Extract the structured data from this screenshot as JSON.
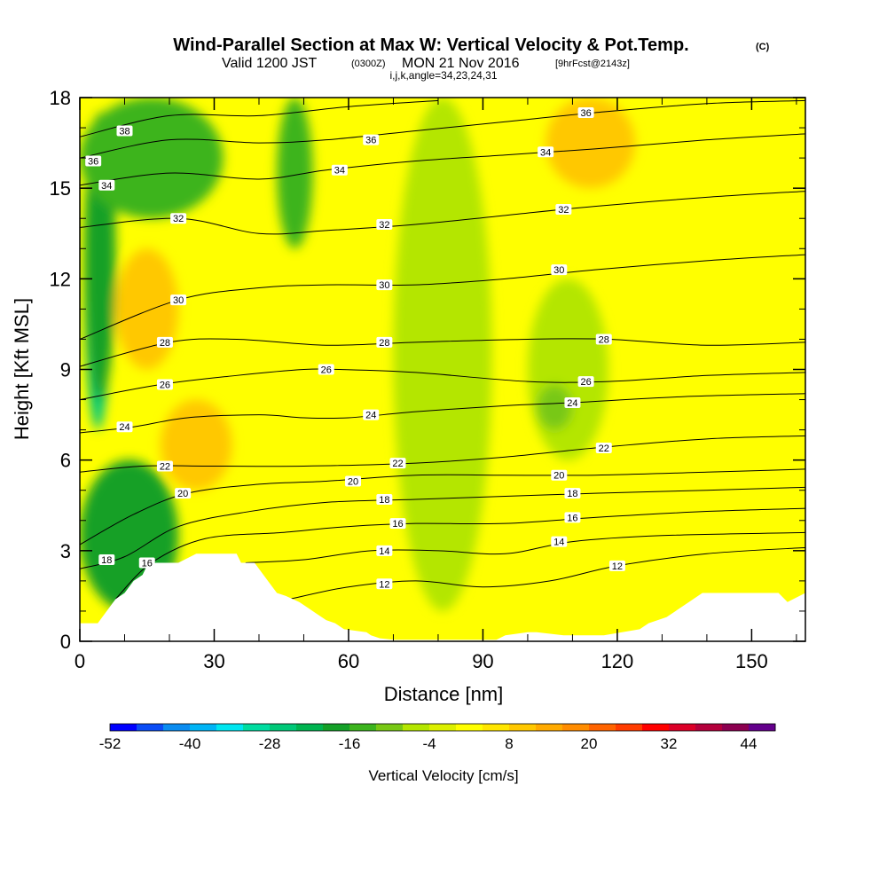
{
  "chart_data": {
    "type": "contour",
    "title": "Wind-Parallel Section at Max W: Vertical Velocity & Pot.Temp.",
    "title_unit": "(C)",
    "subtitle": {
      "valid": "Valid 1200 JST",
      "utc": "(0300Z)",
      "date": "MON 21 Nov 2016",
      "forecast": "[9hrFcst@2143z]"
    },
    "indices": "i,j,k,angle=34,23,24,31",
    "xlabel": "Distance [nm]",
    "ylabel": "Height [Kft MSL]",
    "xlim": [
      0,
      162
    ],
    "ylim": [
      0,
      18
    ],
    "xticks": [
      "0",
      "30",
      "60",
      "90",
      "120",
      "150"
    ],
    "yticks": [
      "0",
      "3",
      "6",
      "9",
      "12",
      "15",
      "18"
    ],
    "colorbar": {
      "label": "Vertical Velocity [cm/s]",
      "tick_labels": [
        "-52",
        "-40",
        "-28",
        "-16",
        "-4",
        "8",
        "20",
        "32",
        "44"
      ],
      "colors": [
        "#0000ff",
        "#0a4cf5",
        "#0a8cf0",
        "#00b4f5",
        "#00e6f0",
        "#00dca0",
        "#00c878",
        "#00b450",
        "#14a028",
        "#3cb41e",
        "#78c814",
        "#b4e600",
        "#dcf000",
        "#ffff00",
        "#ffe600",
        "#ffc800",
        "#ffaa00",
        "#ff8c00",
        "#ff6400",
        "#ff3c00",
        "#ff0000",
        "#dc0028",
        "#b4003c",
        "#8c0050",
        "#64008c"
      ]
    },
    "background_field": {
      "base_color": "#ffff00",
      "regions": [
        {
          "desc": "strong downdraft column",
          "x": [
            1,
            7
          ],
          "y": [
            7,
            17
          ],
          "color": "#00c878"
        },
        {
          "desc": "downdraft column",
          "x": [
            1,
            8
          ],
          "y": [
            8,
            17.5
          ],
          "color": "#14a028"
        },
        {
          "desc": "upper-left sinking",
          "x": [
            0,
            32
          ],
          "y": [
            14,
            18
          ],
          "color": "#3cb41e"
        },
        {
          "desc": "low-level sinking",
          "x": [
            0,
            22
          ],
          "y": [
            1,
            6
          ],
          "color": "#14a028"
        },
        {
          "desc": "upper narrow column",
          "x": [
            44,
            52
          ],
          "y": [
            13,
            18
          ],
          "color": "#3cb41e"
        },
        {
          "desc": "slight sinking band",
          "x": [
            70,
            92
          ],
          "y": [
            1,
            18
          ],
          "color": "#b4e600"
        },
        {
          "desc": "slight sinking band",
          "x": [
            100,
            118
          ],
          "y": [
            6,
            12
          ],
          "color": "#b4e600"
        },
        {
          "desc": "weak downdraft patch",
          "x": [
            102,
            110
          ],
          "y": [
            7,
            8.5
          ],
          "color": "#78c814"
        },
        {
          "desc": "updraft patch",
          "x": [
            8,
            22
          ],
          "y": [
            9,
            13
          ],
          "color": "#ffc800"
        },
        {
          "desc": "updraft patch",
          "x": [
            18,
            34
          ],
          "y": [
            5,
            8
          ],
          "color": "#ffc800"
        },
        {
          "desc": "updraft patch",
          "x": [
            104,
            124
          ],
          "y": [
            15,
            18
          ],
          "color": "#ffc800"
        }
      ]
    },
    "contour_lines": [
      {
        "label": "12",
        "points": [
          [
            47,
            1.4
          ],
          [
            60,
            1.8
          ],
          [
            75,
            2.0
          ],
          [
            90,
            1.8
          ],
          [
            105,
            2.0
          ],
          [
            120,
            2.5
          ],
          [
            140,
            2.9
          ],
          [
            162,
            3.1
          ]
        ],
        "label_at": [
          [
            68,
            1.9
          ],
          [
            120,
            2.5
          ]
        ]
      },
      {
        "label": "14",
        "points": [
          [
            37,
            2.6
          ],
          [
            50,
            2.7
          ],
          [
            65,
            3.0
          ],
          [
            80,
            3.0
          ],
          [
            95,
            2.9
          ],
          [
            110,
            3.3
          ],
          [
            130,
            3.5
          ],
          [
            162,
            3.6
          ]
        ],
        "label_at": [
          [
            68,
            3.0
          ],
          [
            107,
            3.3
          ]
        ]
      },
      {
        "label": "16",
        "points": [
          [
            8,
            1.4
          ],
          [
            16,
            2.6
          ],
          [
            28,
            3.4
          ],
          [
            45,
            3.6
          ],
          [
            60,
            3.8
          ],
          [
            75,
            3.9
          ],
          [
            95,
            3.9
          ],
          [
            115,
            4.1
          ],
          [
            140,
            4.3
          ],
          [
            162,
            4.4
          ]
        ],
        "label_at": [
          [
            15,
            2.6
          ],
          [
            71,
            3.9
          ],
          [
            110,
            4.1
          ]
        ]
      },
      {
        "label": "18",
        "points": [
          [
            0,
            2.4
          ],
          [
            10,
            2.8
          ],
          [
            22,
            3.8
          ],
          [
            38,
            4.3
          ],
          [
            55,
            4.6
          ],
          [
            75,
            4.7
          ],
          [
            95,
            4.8
          ],
          [
            115,
            4.9
          ],
          [
            140,
            5.0
          ],
          [
            162,
            5.1
          ]
        ],
        "label_at": [
          [
            6,
            2.7
          ],
          [
            68,
            4.7
          ],
          [
            110,
            4.9
          ]
        ]
      },
      {
        "label": "20",
        "points": [
          [
            0,
            3.2
          ],
          [
            12,
            4.2
          ],
          [
            24,
            4.9
          ],
          [
            40,
            5.2
          ],
          [
            55,
            5.3
          ],
          [
            75,
            5.5
          ],
          [
            95,
            5.5
          ],
          [
            115,
            5.5
          ],
          [
            140,
            5.6
          ],
          [
            162,
            5.7
          ]
        ],
        "label_at": [
          [
            23,
            4.9
          ],
          [
            61,
            5.3
          ],
          [
            107,
            5.5
          ]
        ]
      },
      {
        "label": "22",
        "points": [
          [
            0,
            5.6
          ],
          [
            14,
            5.8
          ],
          [
            30,
            5.8
          ],
          [
            50,
            5.8
          ],
          [
            75,
            5.9
          ],
          [
            95,
            6.1
          ],
          [
            115,
            6.4
          ],
          [
            140,
            6.7
          ],
          [
            162,
            6.8
          ]
        ],
        "label_at": [
          [
            19,
            5.8
          ],
          [
            71,
            5.9
          ],
          [
            117,
            6.4
          ]
        ]
      },
      {
        "label": "24",
        "points": [
          [
            0,
            6.9
          ],
          [
            12,
            7.1
          ],
          [
            24,
            7.4
          ],
          [
            40,
            7.5
          ],
          [
            50,
            7.4
          ],
          [
            60,
            7.4
          ],
          [
            75,
            7.6
          ],
          [
            95,
            7.8
          ],
          [
            110,
            7.9
          ],
          [
            135,
            8.1
          ],
          [
            162,
            8.2
          ]
        ],
        "label_at": [
          [
            10,
            7.1
          ],
          [
            65,
            7.5
          ],
          [
            110,
            7.9
          ]
        ]
      },
      {
        "label": "26",
        "points": [
          [
            0,
            8.0
          ],
          [
            18,
            8.5
          ],
          [
            35,
            8.8
          ],
          [
            50,
            9.0
          ],
          [
            58,
            9.0
          ],
          [
            75,
            8.9
          ],
          [
            100,
            8.6
          ],
          [
            118,
            8.6
          ],
          [
            140,
            8.8
          ],
          [
            162,
            8.9
          ]
        ],
        "label_at": [
          [
            19,
            8.5
          ],
          [
            55,
            9.0
          ],
          [
            113,
            8.6
          ]
        ]
      },
      {
        "label": "28",
        "points": [
          [
            0,
            9.1
          ],
          [
            20,
            9.9
          ],
          [
            35,
            10.0
          ],
          [
            55,
            9.8
          ],
          [
            75,
            9.9
          ],
          [
            100,
            10.0
          ],
          [
            118,
            10.0
          ],
          [
            140,
            9.8
          ],
          [
            162,
            9.9
          ]
        ],
        "label_at": [
          [
            19,
            9.9
          ],
          [
            68,
            9.9
          ],
          [
            117,
            10.0
          ]
        ]
      },
      {
        "label": "30",
        "points": [
          [
            0,
            10.0
          ],
          [
            22,
            11.3
          ],
          [
            40,
            11.7
          ],
          [
            55,
            11.8
          ],
          [
            75,
            11.8
          ],
          [
            95,
            12.0
          ],
          [
            115,
            12.3
          ],
          [
            140,
            12.6
          ],
          [
            162,
            12.8
          ]
        ],
        "label_at": [
          [
            22,
            11.3
          ],
          [
            68,
            11.8
          ],
          [
            107,
            12.3
          ]
        ]
      },
      {
        "label": "32",
        "points": [
          [
            0,
            13.7
          ],
          [
            22,
            14.0
          ],
          [
            40,
            13.5
          ],
          [
            55,
            13.6
          ],
          [
            75,
            13.8
          ],
          [
            95,
            14.1
          ],
          [
            115,
            14.4
          ],
          [
            140,
            14.7
          ],
          [
            162,
            14.9
          ]
        ],
        "label_at": [
          [
            22,
            14.0
          ],
          [
            68,
            13.8
          ],
          [
            108,
            14.3
          ]
        ]
      },
      {
        "label": "34",
        "points": [
          [
            0,
            15.1
          ],
          [
            20,
            15.5
          ],
          [
            40,
            15.3
          ],
          [
            55,
            15.6
          ],
          [
            75,
            15.9
          ],
          [
            95,
            16.1
          ],
          [
            115,
            16.3
          ],
          [
            140,
            16.6
          ],
          [
            162,
            16.8
          ]
        ],
        "label_at": [
          [
            6,
            15.1
          ],
          [
            58,
            15.6
          ],
          [
            104,
            16.2
          ]
        ]
      },
      {
        "label": "36",
        "points": [
          [
            0,
            16.0
          ],
          [
            20,
            16.6
          ],
          [
            40,
            16.5
          ],
          [
            55,
            16.6
          ],
          [
            75,
            16.9
          ],
          [
            95,
            17.2
          ],
          [
            115,
            17.5
          ],
          [
            140,
            17.8
          ],
          [
            162,
            17.9
          ]
        ],
        "label_at": [
          [
            3,
            15.9
          ],
          [
            65,
            16.6
          ],
          [
            113,
            17.5
          ]
        ]
      },
      {
        "label": "38",
        "points": [
          [
            0,
            16.7
          ],
          [
            20,
            17.4
          ],
          [
            40,
            17.4
          ],
          [
            60,
            17.7
          ],
          [
            80,
            17.9
          ]
        ],
        "label_at": [
          [
            10,
            16.9
          ]
        ]
      }
    ],
    "terrain": {
      "color": "#ffffff",
      "profile": [
        [
          0,
          0.6
        ],
        [
          4,
          0.6
        ],
        [
          6,
          1.0
        ],
        [
          8,
          1.4
        ],
        [
          10,
          1.6
        ],
        [
          12,
          2.0
        ],
        [
          14,
          2.2
        ],
        [
          15,
          2.5
        ],
        [
          17,
          2.6
        ],
        [
          22,
          2.6
        ],
        [
          26,
          2.9
        ],
        [
          35,
          2.9
        ],
        [
          36,
          2.6
        ],
        [
          39,
          2.6
        ],
        [
          41,
          2.2
        ],
        [
          43,
          1.8
        ],
        [
          44,
          1.6
        ],
        [
          46,
          1.5
        ],
        [
          49,
          1.3
        ],
        [
          51,
          1.1
        ],
        [
          53,
          0.9
        ],
        [
          55,
          0.7
        ],
        [
          57,
          0.6
        ],
        [
          59,
          0.4
        ],
        [
          64,
          0.3
        ],
        [
          65,
          0.2
        ],
        [
          67,
          0.1
        ],
        [
          70,
          0.05
        ],
        [
          93,
          0.05
        ],
        [
          95,
          0.2
        ],
        [
          100,
          0.3
        ],
        [
          102,
          0.3
        ],
        [
          108,
          0.2
        ],
        [
          117,
          0.2
        ],
        [
          125,
          0.4
        ],
        [
          127,
          0.6
        ],
        [
          131,
          0.8
        ],
        [
          133,
          1.0
        ],
        [
          136,
          1.3
        ],
        [
          139,
          1.6
        ],
        [
          147,
          1.6
        ],
        [
          156,
          1.6
        ],
        [
          158,
          1.3
        ],
        [
          162,
          1.6
        ]
      ]
    }
  }
}
